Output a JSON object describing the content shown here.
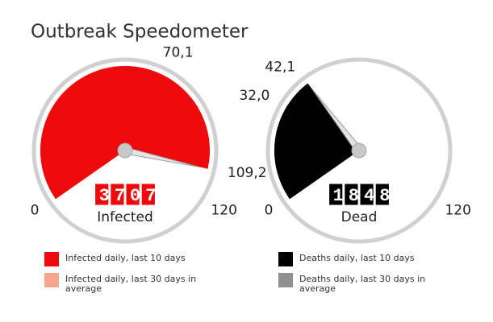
{
  "title": "Outbreak Speedometer",
  "chart_data": [
    {
      "type": "gauge",
      "label": "Infected",
      "value": 3707,
      "ylim": [
        0,
        120
      ],
      "yticks": [
        0,
        {
          "value": 70.1,
          "label": "70,1"
        },
        {
          "value": 109.2,
          "label": "109,2"
        },
        120
      ],
      "series": [
        {
          "name": "Infected daily, last 10 days",
          "color": "#ee0a0a",
          "values": [
            109.2
          ]
        },
        {
          "name": "Infected daily, last 30 days in average",
          "color": "#f7a58e",
          "values": [
            70.1
          ]
        }
      ]
    },
    {
      "type": "gauge",
      "label": "Dead",
      "value": 1848,
      "ylim": [
        0,
        120
      ],
      "yticks": [
        0,
        {
          "value": 32.0,
          "label": "32,0"
        },
        {
          "value": 42.1,
          "label": "42,1"
        },
        120
      ],
      "series": [
        {
          "name": "Deaths daily, last 10 days",
          "color": "#000000",
          "values": [
            42.1
          ]
        },
        {
          "name": "Deaths daily, last 30 days in average",
          "color": "#8f8f8f",
          "values": [
            32.0
          ]
        }
      ]
    }
  ]
}
